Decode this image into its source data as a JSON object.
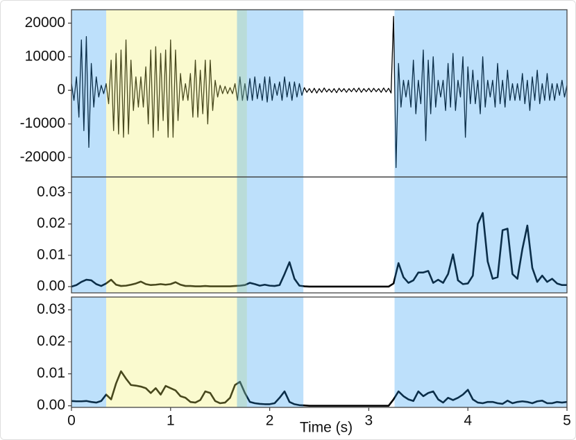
{
  "chart_data": [
    {
      "type": "line",
      "color": "#000000",
      "region_opacity": 0.3,
      "xlim": [
        0,
        5
      ],
      "ylim": [
        -25800,
        24000
      ],
      "yticks": [
        20000,
        10000,
        0,
        -10000,
        -20000
      ],
      "regions": [
        {
          "start": 0,
          "end": 0.35,
          "color": "#2398f2"
        },
        {
          "start": 0.35,
          "end": 1.77,
          "color": "#f0f060"
        },
        {
          "start": 1.67,
          "end": 2.34,
          "color": "#2398f2"
        },
        {
          "start": 3.26,
          "end": 5,
          "color": "#2398f2"
        }
      ],
      "x": [
        0,
        0.025,
        0.05,
        0.075,
        0.1,
        0.125,
        0.15,
        0.175,
        0.2,
        0.225,
        0.25,
        0.275,
        0.3,
        0.325,
        0.35,
        0.375,
        0.4,
        0.425,
        0.45,
        0.475,
        0.5,
        0.525,
        0.55,
        0.575,
        0.6,
        0.625,
        0.65,
        0.675,
        0.7,
        0.725,
        0.75,
        0.775,
        0.8,
        0.825,
        0.85,
        0.875,
        0.9,
        0.925,
        0.95,
        0.975,
        1,
        1.025,
        1.05,
        1.075,
        1.1,
        1.125,
        1.15,
        1.175,
        1.2,
        1.225,
        1.25,
        1.275,
        1.3,
        1.325,
        1.35,
        1.375,
        1.4,
        1.425,
        1.45,
        1.475,
        1.5,
        1.525,
        1.55,
        1.575,
        1.6,
        1.625,
        1.65,
        1.675,
        1.7,
        1.725,
        1.75,
        1.775,
        1.8,
        1.825,
        1.85,
        1.875,
        1.9,
        1.925,
        1.95,
        1.975,
        2,
        2.025,
        2.05,
        2.075,
        2.1,
        2.125,
        2.15,
        2.175,
        2.2,
        2.225,
        2.25,
        2.275,
        2.3,
        2.325,
        2.35,
        2.375,
        2.4,
        2.425,
        2.45,
        2.475,
        2.5,
        2.525,
        2.55,
        2.575,
        2.6,
        2.625,
        2.65,
        2.675,
        2.7,
        2.725,
        2.75,
        2.775,
        2.8,
        2.825,
        2.85,
        2.875,
        2.9,
        2.925,
        2.95,
        2.975,
        3,
        3.025,
        3.05,
        3.075,
        3.1,
        3.125,
        3.15,
        3.175,
        3.2,
        3.225,
        3.25,
        3.275,
        3.3,
        3.325,
        3.35,
        3.375,
        3.4,
        3.425,
        3.45,
        3.475,
        3.5,
        3.525,
        3.55,
        3.575,
        3.6,
        3.625,
        3.65,
        3.675,
        3.7,
        3.725,
        3.75,
        3.775,
        3.8,
        3.825,
        3.85,
        3.875,
        3.9,
        3.925,
        3.95,
        3.975,
        4,
        4.025,
        4.05,
        4.075,
        4.1,
        4.125,
        4.15,
        4.175,
        4.2,
        4.225,
        4.25,
        4.275,
        4.3,
        4.325,
        4.35,
        4.375,
        4.4,
        4.425,
        4.45,
        4.475,
        4.5,
        4.525,
        4.55,
        4.575,
        4.6,
        4.625,
        4.65,
        4.675,
        4.7,
        4.725,
        4.75,
        4.775,
        4.8,
        4.825,
        4.85,
        4.875,
        4.9,
        4.925,
        4.95,
        4.975,
        5
      ],
      "values": [
        2000,
        -3000,
        4000,
        -8000,
        15000,
        -12000,
        16000,
        -17000,
        8000,
        -5000,
        4000,
        -2000,
        1500,
        -1000,
        2000,
        -4000,
        9000,
        -12000,
        11000,
        -13000,
        12000,
        -14000,
        15000,
        -13000,
        9000,
        -6000,
        4000,
        -5000,
        4000,
        -5000,
        7000,
        -10000,
        12000,
        -14000,
        13000,
        -12000,
        11000,
        -9000,
        12000,
        -14000,
        15000,
        -14000,
        12000,
        -9000,
        5000,
        -3000,
        2000,
        -3000,
        5000,
        -8000,
        9000,
        -8000,
        6000,
        -7000,
        9000,
        -10000,
        9000,
        -6000,
        3000,
        -2000,
        1500,
        -1000,
        1200,
        -1000,
        800,
        -1000,
        2000,
        -3000,
        4000,
        -3000,
        2000,
        -3000,
        3500,
        -3000,
        4000,
        -2500,
        2000,
        -3000,
        4000,
        -3500,
        4000,
        -3000,
        2000,
        -1500,
        2500,
        -3000,
        4000,
        -2000,
        2500,
        -3000,
        2500,
        -2000,
        2000,
        -1500,
        800,
        -600,
        500,
        -700,
        600,
        -800,
        500,
        -600,
        700,
        -500,
        400,
        -600,
        500,
        -700,
        600,
        -400,
        500,
        -600,
        500,
        -400,
        600,
        -500,
        700,
        -600,
        500,
        -400,
        600,
        -500,
        600,
        -400,
        500,
        -600,
        700,
        -500,
        600,
        -800,
        22000,
        -23000,
        8000,
        -5000,
        3000,
        -2000,
        3000,
        -5000,
        9000,
        -7000,
        3000,
        -4000,
        12000,
        -15000,
        9000,
        -7000,
        10000,
        -5000,
        3000,
        -2000,
        3000,
        -6000,
        8000,
        -5000,
        11000,
        -6000,
        3000,
        -2000,
        10000,
        -14000,
        7000,
        -4000,
        6000,
        -4000,
        3000,
        -7000,
        10000,
        -5000,
        3000,
        -2000,
        3000,
        -5000,
        8000,
        -4000,
        3000,
        -5000,
        6000,
        -3000,
        2000,
        -3000,
        2000,
        -3000,
        5000,
        -4000,
        3000,
        -6000,
        4000,
        -3000,
        6000,
        -4000,
        2000,
        -3000,
        5000,
        -3000,
        2000,
        -3000,
        2000,
        -1500,
        3000,
        -2000,
        1500
      ]
    },
    {
      "type": "line",
      "color": "#000000",
      "region_opacity": 0.3,
      "xlim": [
        0,
        5
      ],
      "ylim": [
        -0.002,
        0.035
      ],
      "yticks": [
        {
          "value": 0,
          "label": "0.00"
        },
        {
          "value": 0.01,
          "label": "0.01"
        },
        {
          "value": 0.02,
          "label": "0.02"
        },
        {
          "value": 0.03,
          "label": "0.03"
        }
      ],
      "regions": [
        {
          "start": 0,
          "end": 0.35,
          "color": "#2398f2"
        },
        {
          "start": 0.35,
          "end": 1.77,
          "color": "#f0f060"
        },
        {
          "start": 1.67,
          "end": 2.34,
          "color": "#2398f2"
        },
        {
          "start": 3.26,
          "end": 5,
          "color": "#2398f2"
        }
      ],
      "x": [
        0,
        0.05,
        0.1,
        0.15,
        0.2,
        0.25,
        0.3,
        0.35,
        0.4,
        0.45,
        0.5,
        0.55,
        0.6,
        0.65,
        0.7,
        0.75,
        0.8,
        0.85,
        0.9,
        0.95,
        1,
        1.05,
        1.1,
        1.15,
        1.2,
        1.25,
        1.3,
        1.35,
        1.4,
        1.45,
        1.5,
        1.55,
        1.6,
        1.65,
        1.7,
        1.75,
        1.8,
        1.85,
        1.9,
        1.95,
        2,
        2.05,
        2.1,
        2.15,
        2.2,
        2.25,
        2.3,
        2.35,
        2.4,
        2.45,
        2.5,
        2.55,
        2.6,
        2.65,
        2.7,
        2.75,
        2.8,
        2.85,
        2.9,
        2.95,
        3,
        3.05,
        3.1,
        3.15,
        3.2,
        3.25,
        3.3,
        3.35,
        3.4,
        3.45,
        3.5,
        3.55,
        3.6,
        3.65,
        3.7,
        3.75,
        3.8,
        3.85,
        3.9,
        3.95,
        4,
        4.05,
        4.1,
        4.15,
        4.2,
        4.25,
        4.3,
        4.35,
        4.4,
        4.45,
        4.5,
        4.55,
        4.6,
        4.65,
        4.7,
        4.75,
        4.8,
        4.85,
        4.9,
        4.95,
        5
      ],
      "values": [
        0,
        0.0005,
        0.0015,
        0.0022,
        0.002,
        0.0008,
        0.0002,
        0.001,
        0.0022,
        0.0006,
        0.0002,
        0.0003,
        0.0006,
        0.001,
        0.0016,
        0.0008,
        0.0005,
        0.0006,
        0.0008,
        0.0006,
        0.0008,
        0.0014,
        0.0006,
        0.0002,
        0.0002,
        0.0001,
        0.0001,
        0.0002,
        0.0001,
        0.0001,
        0.0001,
        0.0001,
        0.0001,
        0.0002,
        0.0003,
        0.0005,
        0.0012,
        0.0008,
        0.0003,
        0.0006,
        0.0003,
        0.0002,
        0.0005,
        0.004,
        0.0078,
        0.0025,
        0.0003,
        0.0001,
        0,
        0,
        0,
        0,
        0,
        0,
        0,
        0,
        0,
        0,
        0,
        0,
        0,
        0,
        0,
        0,
        0,
        0.001,
        0.0075,
        0.003,
        0.0012,
        0.002,
        0.0045,
        0.0045,
        0.005,
        0.0012,
        0.0022,
        0.0012,
        0.004,
        0.0103,
        0.002,
        0.0008,
        0.001,
        0.0035,
        0.02,
        0.0235,
        0.008,
        0.0025,
        0.003,
        0.018,
        0.0185,
        0.004,
        0.0025,
        0.012,
        0.0195,
        0.006,
        0.0015,
        0.0035,
        0.0015,
        0.0025,
        0.001,
        0.0005,
        0.0005
      ]
    },
    {
      "type": "line",
      "color": "#000000",
      "region_opacity": 0.3,
      "xlim": [
        0,
        5
      ],
      "ylim": [
        -0.0005,
        0.034
      ],
      "xticks": [
        0,
        1,
        2,
        3,
        4,
        5
      ],
      "xlabel": "Time (s)",
      "yticks": [
        {
          "value": 0,
          "label": "0.00"
        },
        {
          "value": 0.01,
          "label": "0.01"
        },
        {
          "value": 0.02,
          "label": "0.02"
        },
        {
          "value": 0.03,
          "label": "0.03"
        }
      ],
      "regions": [
        {
          "start": 0,
          "end": 0.35,
          "color": "#2398f2"
        },
        {
          "start": 0.35,
          "end": 1.77,
          "color": "#f0f060"
        },
        {
          "start": 1.67,
          "end": 2.34,
          "color": "#2398f2"
        },
        {
          "start": 3.26,
          "end": 5,
          "color": "#2398f2"
        }
      ],
      "x": [
        0,
        0.05,
        0.1,
        0.15,
        0.2,
        0.25,
        0.3,
        0.35,
        0.4,
        0.45,
        0.5,
        0.55,
        0.6,
        0.65,
        0.7,
        0.75,
        0.8,
        0.85,
        0.9,
        0.95,
        1,
        1.05,
        1.1,
        1.15,
        1.2,
        1.25,
        1.3,
        1.35,
        1.4,
        1.45,
        1.5,
        1.55,
        1.6,
        1.65,
        1.7,
        1.75,
        1.8,
        1.85,
        1.9,
        1.95,
        2,
        2.05,
        2.1,
        2.15,
        2.2,
        2.25,
        2.3,
        2.35,
        2.4,
        2.45,
        2.5,
        2.55,
        2.6,
        2.65,
        2.7,
        2.75,
        2.8,
        2.85,
        2.9,
        2.95,
        3,
        3.05,
        3.1,
        3.15,
        3.2,
        3.25,
        3.3,
        3.35,
        3.4,
        3.45,
        3.5,
        3.55,
        3.6,
        3.65,
        3.7,
        3.75,
        3.8,
        3.85,
        3.9,
        3.95,
        4,
        4.05,
        4.1,
        4.15,
        4.2,
        4.25,
        4.3,
        4.35,
        4.4,
        4.45,
        4.5,
        4.55,
        4.6,
        4.65,
        4.7,
        4.75,
        4.8,
        4.85,
        4.9,
        4.95,
        5
      ],
      "values": [
        0.0015,
        0.0014,
        0.0014,
        0.0015,
        0.0012,
        0.001,
        0.0015,
        0.0035,
        0.002,
        0.007,
        0.0108,
        0.0085,
        0.0065,
        0.0063,
        0.006,
        0.0055,
        0.004,
        0.0055,
        0.0035,
        0.0062,
        0.0055,
        0.0048,
        0.003,
        0.0025,
        0.0012,
        0.001,
        0.0018,
        0.0045,
        0.004,
        0.0015,
        0.0008,
        0.001,
        0.0025,
        0.0065,
        0.0075,
        0.004,
        0.0012,
        0.0008,
        0.0006,
        0.0005,
        0.0005,
        0.0008,
        0.0025,
        0.0045,
        0.0012,
        0.0005,
        0.0002,
        0.0001,
        0,
        0,
        0,
        0,
        0,
        0,
        0,
        0,
        0,
        0,
        0,
        0,
        0,
        0,
        0,
        0,
        0,
        0.002,
        0.0045,
        0.003,
        0.002,
        0.0015,
        0.0045,
        0.003,
        0.004,
        0.0045,
        0.002,
        0.001,
        0.0025,
        0.0018,
        0.0025,
        0.0035,
        0.005,
        0.002,
        0.001,
        0.0008,
        0.0012,
        0.0012,
        0.0008,
        0.0006,
        0.0016,
        0.0008,
        0.0012,
        0.0014,
        0.0012,
        0.0008,
        0.0014,
        0.0016,
        0.0008,
        0.0008,
        0.0012,
        0.001,
        0.0012
      ]
    }
  ]
}
